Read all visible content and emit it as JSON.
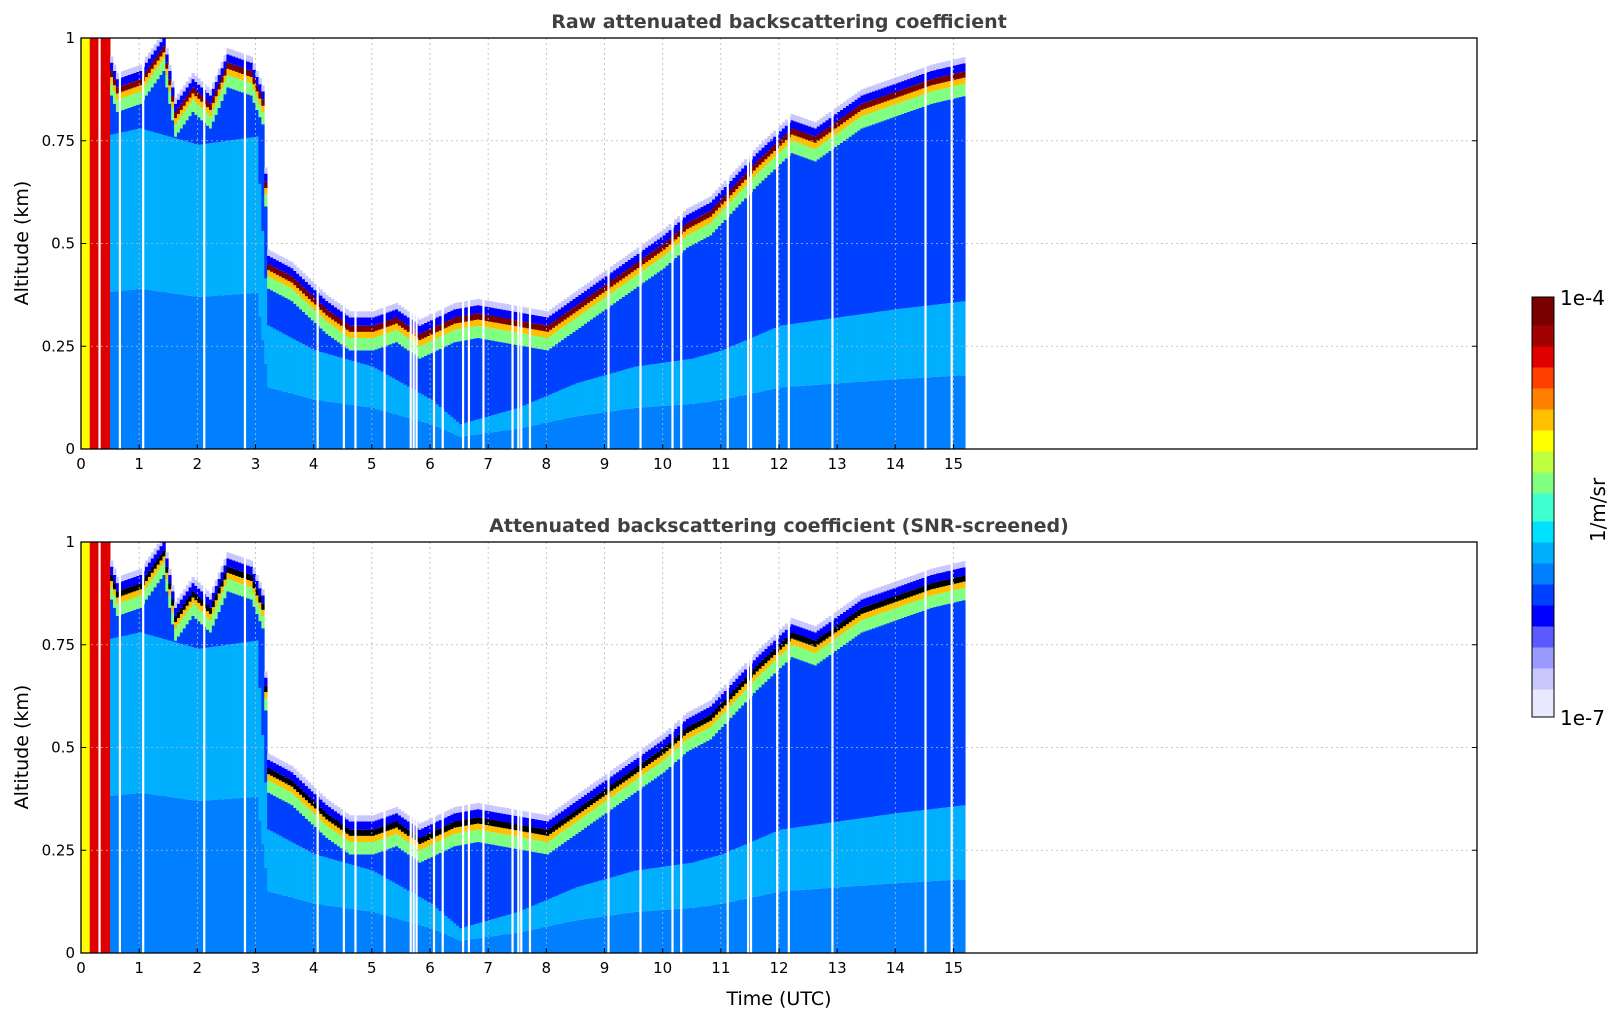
{
  "figure": {
    "xlabel": "Time (UTC)"
  },
  "colorbar": {
    "max_label": "1e-4",
    "min_label": "1e-7",
    "label": "1/m/sr",
    "colors": [
      "#e8e8ff",
      "#c8c8ff",
      "#9a9aff",
      "#5a5aff",
      "#0000ff",
      "#0040ff",
      "#0080ff",
      "#00b0ff",
      "#00e0ff",
      "#40ffd0",
      "#80ff80",
      "#c0ff40",
      "#ffff00",
      "#ffc000",
      "#ff8000",
      "#ff4000",
      "#e00000",
      "#a00000",
      "#7a0000"
    ]
  },
  "chart_data": [
    {
      "type": "heatmap",
      "title": "Raw attenuated backscattering coefficient",
      "xlabel": "",
      "ylabel": "Altitude (km)",
      "xlim": [
        0,
        24
      ],
      "ylim": [
        0,
        1
      ],
      "xticks": [
        0,
        1,
        2,
        3,
        4,
        5,
        6,
        7,
        8,
        9,
        10,
        11,
        12,
        13,
        14,
        15
      ],
      "xtick_labels": [
        "0",
        "1",
        "2",
        "3",
        "4",
        "5",
        "6",
        "7",
        "8",
        "9",
        "10",
        "11",
        "12",
        "13",
        "14",
        "15"
      ],
      "yticks": [
        0,
        0.25,
        0.5,
        0.75,
        1
      ],
      "ytick_labels": [
        "0",
        "0.25",
        "0.5",
        "0.75",
        "1"
      ],
      "grid": true,
      "data_end_time": 15.2,
      "cloud_layer_top_km": [
        [
          0.0,
          0.95
        ],
        [
          0.3,
          1.0
        ],
        [
          0.6,
          0.88
        ],
        [
          1.0,
          0.9
        ],
        [
          1.4,
          0.98
        ],
        [
          1.6,
          0.82
        ],
        [
          1.9,
          0.88
        ],
        [
          2.2,
          0.84
        ],
        [
          2.5,
          0.94
        ],
        [
          2.9,
          0.92
        ],
        [
          3.1,
          0.85
        ],
        [
          3.2,
          0.45
        ],
        [
          3.6,
          0.42
        ],
        [
          3.9,
          0.38
        ],
        [
          4.2,
          0.34
        ],
        [
          4.6,
          0.3
        ],
        [
          5.0,
          0.3
        ],
        [
          5.4,
          0.32
        ],
        [
          5.8,
          0.28
        ],
        [
          6.1,
          0.3
        ],
        [
          6.4,
          0.32
        ],
        [
          6.8,
          0.33
        ],
        [
          7.2,
          0.32
        ],
        [
          7.6,
          0.31
        ],
        [
          8.0,
          0.3
        ],
        [
          8.4,
          0.34
        ],
        [
          8.8,
          0.38
        ],
        [
          9.2,
          0.42
        ],
        [
          9.6,
          0.46
        ],
        [
          10.0,
          0.5
        ],
        [
          10.4,
          0.55
        ],
        [
          10.8,
          0.58
        ],
        [
          11.2,
          0.64
        ],
        [
          11.6,
          0.7
        ],
        [
          11.9,
          0.74
        ],
        [
          12.2,
          0.78
        ],
        [
          12.6,
          0.76
        ],
        [
          13.0,
          0.8
        ],
        [
          13.4,
          0.84
        ],
        [
          13.8,
          0.86
        ],
        [
          14.2,
          0.88
        ],
        [
          14.6,
          0.9
        ],
        [
          15.2,
          0.92
        ]
      ],
      "aerosol_mixing_height_km": [
        [
          0.0,
          0.75
        ],
        [
          1.0,
          0.78
        ],
        [
          2.0,
          0.74
        ],
        [
          3.0,
          0.76
        ],
        [
          3.2,
          0.3
        ],
        [
          4.0,
          0.24
        ],
        [
          5.0,
          0.2
        ],
        [
          6.0,
          0.12
        ],
        [
          6.5,
          0.06
        ],
        [
          7.5,
          0.1
        ],
        [
          8.5,
          0.16
        ],
        [
          9.5,
          0.2
        ],
        [
          10.5,
          0.22
        ],
        [
          11.0,
          0.24
        ],
        [
          12.0,
          0.3
        ],
        [
          13.0,
          0.32
        ],
        [
          14.0,
          0.34
        ],
        [
          15.2,
          0.36
        ]
      ]
    },
    {
      "type": "heatmap",
      "title": "Attenuated backscattering coefficient (SNR-screened)",
      "xlabel": "Time (UTC)",
      "ylabel": "Altitude (km)",
      "xlim": [
        0,
        24
      ],
      "ylim": [
        0,
        1
      ],
      "xticks": [
        0,
        1,
        2,
        3,
        4,
        5,
        6,
        7,
        8,
        9,
        10,
        11,
        12,
        13,
        14,
        15
      ],
      "xtick_labels": [
        "0",
        "1",
        "2",
        "3",
        "4",
        "5",
        "6",
        "7",
        "8",
        "9",
        "10",
        "11",
        "12",
        "13",
        "14",
        "15"
      ],
      "yticks": [
        0,
        0.25,
        0.5,
        0.75,
        1
      ],
      "ytick_labels": [
        "0",
        "0.25",
        "0.5",
        "0.75",
        "1"
      ],
      "grid": true,
      "data_end_time": 15.2,
      "screened_value_color": "#000000",
      "cloud_layer_top_km": [
        [
          0.0,
          0.95
        ],
        [
          0.3,
          1.0
        ],
        [
          0.6,
          0.88
        ],
        [
          1.0,
          0.9
        ],
        [
          1.4,
          0.98
        ],
        [
          1.6,
          0.82
        ],
        [
          1.9,
          0.88
        ],
        [
          2.2,
          0.84
        ],
        [
          2.5,
          0.94
        ],
        [
          2.9,
          0.92
        ],
        [
          3.1,
          0.85
        ],
        [
          3.2,
          0.45
        ],
        [
          3.6,
          0.42
        ],
        [
          3.9,
          0.38
        ],
        [
          4.2,
          0.34
        ],
        [
          4.6,
          0.3
        ],
        [
          5.0,
          0.3
        ],
        [
          5.4,
          0.32
        ],
        [
          5.8,
          0.28
        ],
        [
          6.1,
          0.3
        ],
        [
          6.4,
          0.32
        ],
        [
          6.8,
          0.33
        ],
        [
          7.2,
          0.32
        ],
        [
          7.6,
          0.31
        ],
        [
          8.0,
          0.3
        ],
        [
          8.4,
          0.34
        ],
        [
          8.8,
          0.38
        ],
        [
          9.2,
          0.42
        ],
        [
          9.6,
          0.46
        ],
        [
          10.0,
          0.5
        ],
        [
          10.4,
          0.55
        ],
        [
          10.8,
          0.58
        ],
        [
          11.2,
          0.64
        ],
        [
          11.6,
          0.7
        ],
        [
          11.9,
          0.74
        ],
        [
          12.2,
          0.78
        ],
        [
          12.6,
          0.76
        ],
        [
          13.0,
          0.8
        ],
        [
          13.4,
          0.84
        ],
        [
          13.8,
          0.86
        ],
        [
          14.2,
          0.88
        ],
        [
          14.6,
          0.9
        ],
        [
          15.2,
          0.92
        ]
      ],
      "aerosol_mixing_height_km": [
        [
          0.0,
          0.75
        ],
        [
          1.0,
          0.78
        ],
        [
          2.0,
          0.74
        ],
        [
          3.0,
          0.76
        ],
        [
          3.2,
          0.3
        ],
        [
          4.0,
          0.24
        ],
        [
          5.0,
          0.2
        ],
        [
          6.0,
          0.12
        ],
        [
          6.5,
          0.06
        ],
        [
          7.5,
          0.1
        ],
        [
          8.5,
          0.16
        ],
        [
          9.5,
          0.2
        ],
        [
          10.5,
          0.22
        ],
        [
          11.0,
          0.24
        ],
        [
          12.0,
          0.3
        ],
        [
          13.0,
          0.32
        ],
        [
          14.0,
          0.34
        ],
        [
          15.2,
          0.36
        ]
      ]
    }
  ]
}
